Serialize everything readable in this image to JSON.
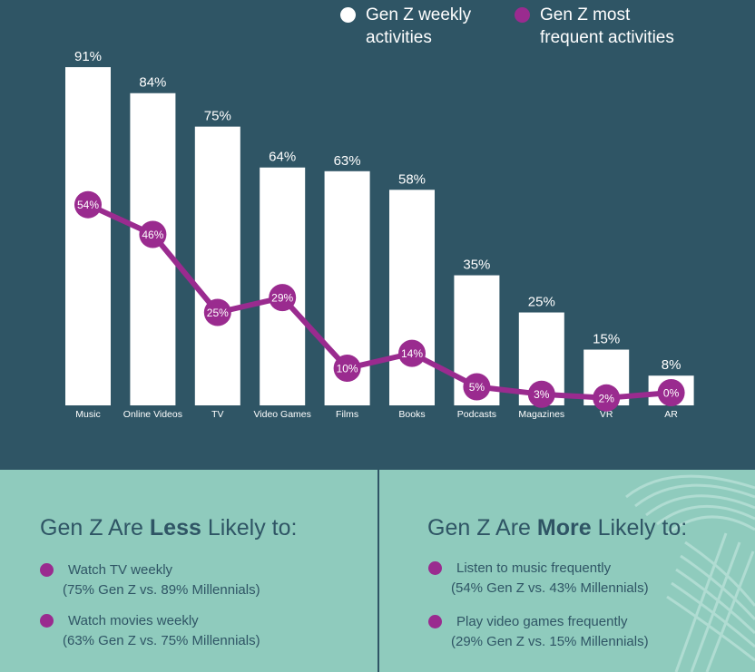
{
  "colors": {
    "background": "#2f5565",
    "bar": "#ffffff",
    "line": "#9a2b8f",
    "bottom_panel": "#8fcbbd",
    "bottom_text": "#2f5565"
  },
  "legend": {
    "weekly": "Gen Z weekly\nactivities",
    "frequent": "Gen Z most\nfrequent activities"
  },
  "chart_data": {
    "type": "bar",
    "categories": [
      "Music",
      "Online Videos",
      "TV",
      "Video Games",
      "Films",
      "Books",
      "Podcasts",
      "Magazines",
      "VR",
      "AR"
    ],
    "series": [
      {
        "name": "Gen Z weekly activities",
        "type": "bar",
        "values": [
          91,
          84,
          75,
          64,
          63,
          58,
          35,
          25,
          15,
          8
        ],
        "labels": [
          "91%",
          "84%",
          "75%",
          "64%",
          "63%",
          "58%",
          "35%",
          "25%",
          "15%",
          "8%"
        ]
      },
      {
        "name": "Gen Z most frequent activities",
        "type": "line",
        "values": [
          54,
          46,
          25,
          29,
          10,
          14,
          5,
          3,
          2,
          0
        ],
        "labels": [
          "54%",
          "46%",
          "25%",
          "29%",
          "10%",
          "14%",
          "5%",
          "3%",
          "2%",
          "0%"
        ]
      }
    ],
    "ylim": [
      0,
      100
    ],
    "grid": false,
    "legend_position": "top-right"
  },
  "less_likely": {
    "title_prefix": "Gen Z Are ",
    "title_strong": "Less",
    "title_suffix": " Likely to:",
    "items": [
      {
        "line1": "Watch TV weekly",
        "line2": "(75% Gen Z vs. 89% Millennials)"
      },
      {
        "line1": "Watch movies weekly",
        "line2": "(63% Gen Z vs. 75% Millennials)"
      }
    ]
  },
  "more_likely": {
    "title_prefix": "Gen Z Are ",
    "title_strong": "More",
    "title_suffix": " Likely to:",
    "items": [
      {
        "line1": "Listen to music frequently",
        "line2": "(54% Gen Z vs. 43% Millennials)"
      },
      {
        "line1": "Play video games frequently",
        "line2": "(29% Gen Z vs. 15% Millennials)"
      }
    ]
  }
}
